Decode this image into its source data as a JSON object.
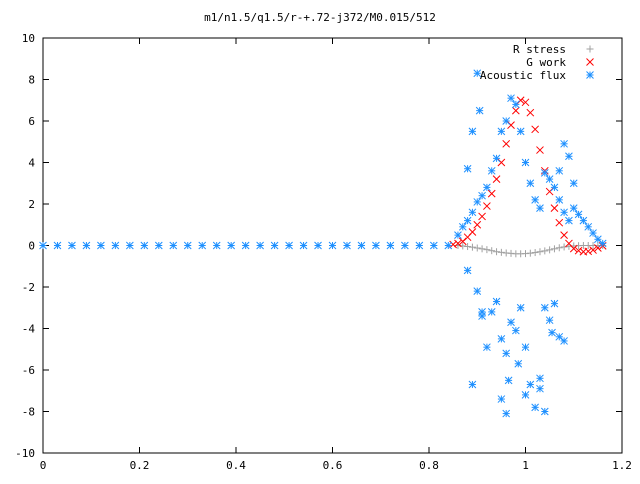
{
  "chart_data": {
    "type": "scatter",
    "title": "m1/n1.5/q1.5/r-+.72-j372/M0.015/512",
    "xlabel": "",
    "ylabel": "",
    "xlim": [
      0,
      1.2
    ],
    "ylim": [
      -10,
      10
    ],
    "xticks": [
      "0",
      "0.2",
      "0.4",
      "0.6",
      "0.8",
      "1",
      "1.2"
    ],
    "xtick_values": [
      0,
      0.2,
      0.4,
      0.6,
      0.8,
      1.0,
      1.2
    ],
    "yticks": [
      "10",
      "8",
      "6",
      "4",
      "2",
      "0",
      "-2",
      "-4",
      "-6",
      "-8",
      "-10"
    ],
    "ytick_values": [
      10,
      8,
      6,
      4,
      2,
      0,
      -2,
      -4,
      -6,
      -8,
      -10
    ],
    "grid": false,
    "legend_position": "top-right",
    "series": [
      {
        "name": "R stress",
        "marker": "plus",
        "color": "#a0a0a0",
        "points": [
          [
            0.86,
            0.0
          ],
          [
            0.87,
            -0.02
          ],
          [
            0.88,
            -0.05
          ],
          [
            0.89,
            -0.08
          ],
          [
            0.9,
            -0.12
          ],
          [
            0.91,
            -0.16
          ],
          [
            0.92,
            -0.2
          ],
          [
            0.93,
            -0.25
          ],
          [
            0.94,
            -0.3
          ],
          [
            0.95,
            -0.33
          ],
          [
            0.96,
            -0.36
          ],
          [
            0.97,
            -0.38
          ],
          [
            0.98,
            -0.4
          ],
          [
            0.99,
            -0.4
          ],
          [
            1.0,
            -0.39
          ],
          [
            1.01,
            -0.37
          ],
          [
            1.02,
            -0.34
          ],
          [
            1.03,
            -0.3
          ],
          [
            1.04,
            -0.26
          ],
          [
            1.05,
            -0.21
          ],
          [
            1.06,
            -0.16
          ],
          [
            1.07,
            -0.11
          ],
          [
            1.08,
            -0.07
          ],
          [
            1.09,
            -0.04
          ],
          [
            1.1,
            -0.02
          ],
          [
            1.11,
            -0.01
          ],
          [
            1.12,
            0.0
          ],
          [
            1.13,
            0.0
          ],
          [
            1.14,
            0.0
          ],
          [
            1.15,
            0.0
          ],
          [
            1.16,
            0.0
          ]
        ]
      },
      {
        "name": "G work",
        "marker": "cross",
        "color": "#ff0000",
        "points": [
          [
            0.85,
            0.05
          ],
          [
            0.86,
            0.1
          ],
          [
            0.87,
            0.2
          ],
          [
            0.88,
            0.4
          ],
          [
            0.89,
            0.65
          ],
          [
            0.9,
            1.0
          ],
          [
            0.91,
            1.4
          ],
          [
            0.92,
            1.9
          ],
          [
            0.93,
            2.5
          ],
          [
            0.94,
            3.2
          ],
          [
            0.95,
            4.0
          ],
          [
            0.96,
            4.9
          ],
          [
            0.97,
            5.8
          ],
          [
            0.98,
            6.5
          ],
          [
            0.99,
            7.0
          ],
          [
            1.0,
            6.9
          ],
          [
            1.01,
            6.4
          ],
          [
            1.02,
            5.6
          ],
          [
            1.03,
            4.6
          ],
          [
            1.04,
            3.6
          ],
          [
            1.05,
            2.6
          ],
          [
            1.06,
            1.8
          ],
          [
            1.07,
            1.1
          ],
          [
            1.08,
            0.5
          ],
          [
            1.09,
            0.1
          ],
          [
            1.1,
            -0.15
          ],
          [
            1.11,
            -0.25
          ],
          [
            1.12,
            -0.3
          ],
          [
            1.13,
            -0.28
          ],
          [
            1.14,
            -0.22
          ],
          [
            1.15,
            -0.12
          ],
          [
            1.16,
            -0.02
          ]
        ]
      },
      {
        "name": "Acoustic flux",
        "marker": "star",
        "color": "#1e90ff",
        "points": [
          [
            0.0,
            0.0
          ],
          [
            0.03,
            0.0
          ],
          [
            0.06,
            0.0
          ],
          [
            0.09,
            0.0
          ],
          [
            0.12,
            0.0
          ],
          [
            0.15,
            0.0
          ],
          [
            0.18,
            0.0
          ],
          [
            0.21,
            0.0
          ],
          [
            0.24,
            0.0
          ],
          [
            0.27,
            0.0
          ],
          [
            0.3,
            0.0
          ],
          [
            0.33,
            0.0
          ],
          [
            0.36,
            0.0
          ],
          [
            0.39,
            0.0
          ],
          [
            0.42,
            0.0
          ],
          [
            0.45,
            0.0
          ],
          [
            0.48,
            0.0
          ],
          [
            0.51,
            0.0
          ],
          [
            0.54,
            0.0
          ],
          [
            0.57,
            0.0
          ],
          [
            0.6,
            0.0
          ],
          [
            0.63,
            0.0
          ],
          [
            0.66,
            0.0
          ],
          [
            0.69,
            0.0
          ],
          [
            0.72,
            0.0
          ],
          [
            0.75,
            0.0
          ],
          [
            0.78,
            0.0
          ],
          [
            0.81,
            0.0
          ],
          [
            0.84,
            0.0
          ],
          [
            0.86,
            0.5
          ],
          [
            0.87,
            0.9
          ],
          [
            0.88,
            1.2
          ],
          [
            0.89,
            1.6
          ],
          [
            0.9,
            2.1
          ],
          [
            0.91,
            2.4
          ],
          [
            0.92,
            2.8
          ],
          [
            0.93,
            3.6
          ],
          [
            0.94,
            4.2
          ],
          [
            0.95,
            5.5
          ],
          [
            0.96,
            6.0
          ],
          [
            0.97,
            7.1
          ],
          [
            0.98,
            6.8
          ],
          [
            0.99,
            5.5
          ],
          [
            1.0,
            4.0
          ],
          [
            1.01,
            3.0
          ],
          [
            1.02,
            2.2
          ],
          [
            1.03,
            1.8
          ],
          [
            1.04,
            3.5
          ],
          [
            1.05,
            3.2
          ],
          [
            1.06,
            2.8
          ],
          [
            1.07,
            2.2
          ],
          [
            1.08,
            1.6
          ],
          [
            1.09,
            1.2
          ],
          [
            1.1,
            1.8
          ],
          [
            1.11,
            1.5
          ],
          [
            1.12,
            1.2
          ],
          [
            1.13,
            0.9
          ],
          [
            1.14,
            0.6
          ],
          [
            1.15,
            0.3
          ],
          [
            1.16,
            0.1
          ],
          [
            0.88,
            -1.2
          ],
          [
            0.9,
            -2.2
          ],
          [
            0.91,
            -3.4
          ],
          [
            0.92,
            -4.9
          ],
          [
            0.93,
            -3.2
          ],
          [
            0.94,
            -2.7
          ],
          [
            0.95,
            -4.5
          ],
          [
            0.96,
            -5.2
          ],
          [
            0.965,
            -6.5
          ],
          [
            0.97,
            -3.7
          ],
          [
            0.98,
            -4.1
          ],
          [
            0.99,
            -3.0
          ],
          [
            1.0,
            -4.9
          ],
          [
            1.01,
            -6.7
          ],
          [
            1.02,
            -7.8
          ],
          [
            1.03,
            -6.4
          ],
          [
            1.04,
            -3.0
          ],
          [
            1.05,
            -3.6
          ],
          [
            1.06,
            -2.8
          ],
          [
            1.07,
            -4.4
          ],
          [
            1.08,
            -4.6
          ],
          [
            0.89,
            -6.7
          ],
          [
            0.96,
            -8.1
          ],
          [
            1.0,
            -7.2
          ],
          [
            0.95,
            -7.4
          ],
          [
            1.04,
            -8.0
          ],
          [
            1.03,
            -6.9
          ],
          [
            0.91,
            -3.2
          ],
          [
            0.985,
            -5.7
          ],
          [
            1.055,
            -4.2
          ],
          [
            0.9,
            8.3
          ],
          [
            0.905,
            6.5
          ],
          [
            0.89,
            5.5
          ],
          [
            0.88,
            3.7
          ],
          [
            1.08,
            4.9
          ],
          [
            1.1,
            3.0
          ],
          [
            1.09,
            4.3
          ],
          [
            1.07,
            3.6
          ]
        ]
      }
    ]
  }
}
